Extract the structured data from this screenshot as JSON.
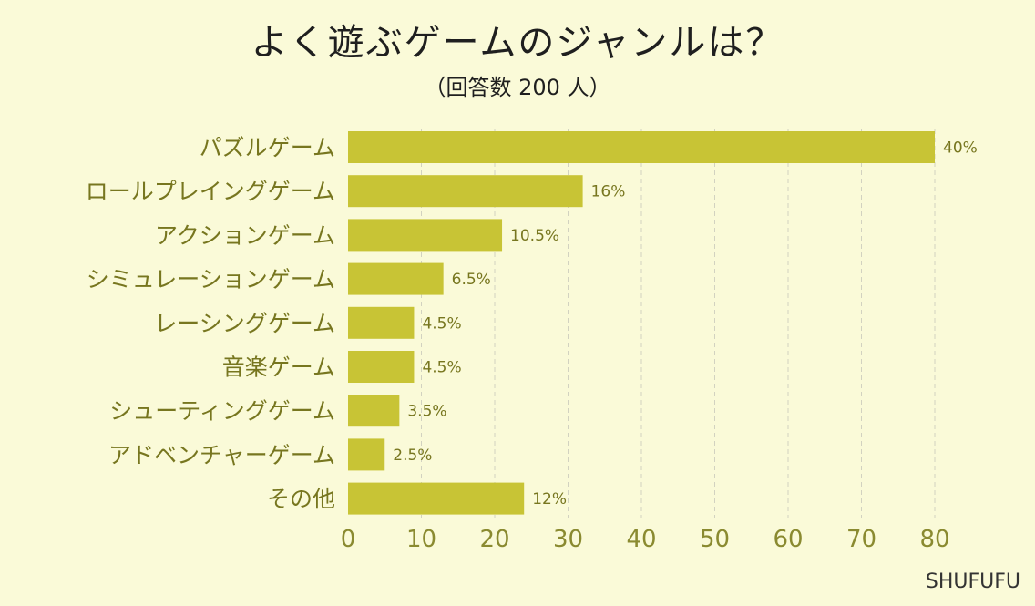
{
  "title": "よく遊ぶゲームのジャンルは？",
  "subtitle": "（回答数 200 人）",
  "credit": "SHUFUFU",
  "colors": {
    "background": "#fafad8",
    "bar": "#c8c435",
    "label": "#77761f",
    "tick": "#8a8a30",
    "grid": "#d2d2c0"
  },
  "chart_data": {
    "type": "bar",
    "orientation": "horizontal",
    "title": "よく遊ぶゲームのジャンルは？",
    "subtitle": "（回答数 200 人）",
    "categories": [
      "パズルゲーム",
      "ロールプレイングゲーム",
      "アクションゲーム",
      "シミュレーションゲーム",
      "レーシングゲーム",
      "音楽ゲーム",
      "シューティングゲーム",
      "アドベンチャーゲーム",
      "その他"
    ],
    "values": [
      40,
      16,
      10.5,
      6.5,
      4.5,
      4.5,
      3.5,
      2.5,
      12
    ],
    "value_labels": [
      "40%",
      "16%",
      "10.5%",
      "6.5%",
      "4.5%",
      "4.5%",
      "3.5%",
      "2.5%",
      "12%"
    ],
    "value_scale": 2,
    "xlim": [
      0,
      80
    ],
    "xticks": [
      0,
      10,
      20,
      30,
      40,
      50,
      60,
      70,
      80
    ],
    "grid": "vertical dashed",
    "legend": "none"
  }
}
